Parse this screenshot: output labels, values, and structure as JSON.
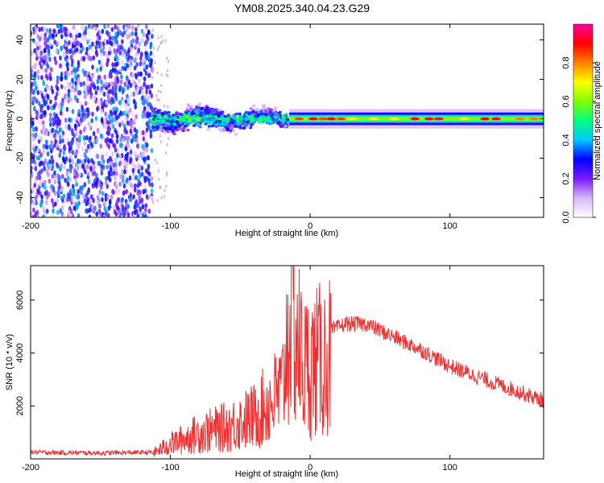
{
  "title": "YM08.2025.340.04.23.G29",
  "chart_data": [
    {
      "type": "heatmap",
      "xlabel": "Height of straight line (km)",
      "ylabel": "Frequency (Hz)",
      "xlim": [
        -200,
        167
      ],
      "ylim": [
        -50,
        48
      ],
      "xticks": [
        -200,
        -100,
        0,
        100
      ],
      "yticks": [
        -40,
        -20,
        0,
        20,
        40
      ],
      "colorbar": {
        "label": "Normalized spectral amplitude",
        "range": [
          0.0,
          1.0
        ],
        "ticks": [
          "0.0",
          "0.2",
          "0.4",
          "0.6",
          "0.8"
        ],
        "colors": [
          "#ffffff",
          "#d8b8f8",
          "#7a1aff",
          "#0000ff",
          "#00c8ff",
          "#00ff80",
          "#80ff00",
          "#ffff00",
          "#ff8000",
          "#ff0000",
          "#ff00a0"
        ]
      },
      "regions": [
        {
          "name": "noise",
          "x_range": [
            -200,
            -113
          ],
          "freq_range": [
            -50,
            48
          ],
          "amplitude": 0.25
        },
        {
          "name": "turbulent-signal",
          "x_range": [
            -113,
            -15
          ],
          "freq_range": [
            -10,
            10
          ],
          "amplitude": 0.45
        },
        {
          "name": "carrier",
          "x_range": [
            -15,
            167
          ],
          "freq_range": [
            -2,
            2
          ],
          "amplitude": 0.85
        }
      ]
    },
    {
      "type": "line",
      "xlabel": "Height of straight line (km)",
      "ylabel": "SNR (10 * v/v)",
      "xlim": [
        -200,
        167
      ],
      "ylim": [
        0,
        7300
      ],
      "xticks": [
        -200,
        -100,
        0,
        100
      ],
      "yticks": [
        2000,
        4000,
        6000
      ],
      "color": "#f03030",
      "series": [
        {
          "name": "SNR",
          "x": [
            -200,
            -150,
            -113,
            -100,
            -80,
            -60,
            -40,
            -20,
            -14,
            -5,
            10,
            25,
            40,
            60,
            80,
            100,
            130,
            167
          ],
          "y": [
            250,
            220,
            250,
            700,
            1200,
            1500,
            2000,
            3200,
            7200,
            4300,
            4700,
            5100,
            5100,
            4600,
            4100,
            3500,
            2900,
            2200
          ]
        }
      ]
    }
  ]
}
